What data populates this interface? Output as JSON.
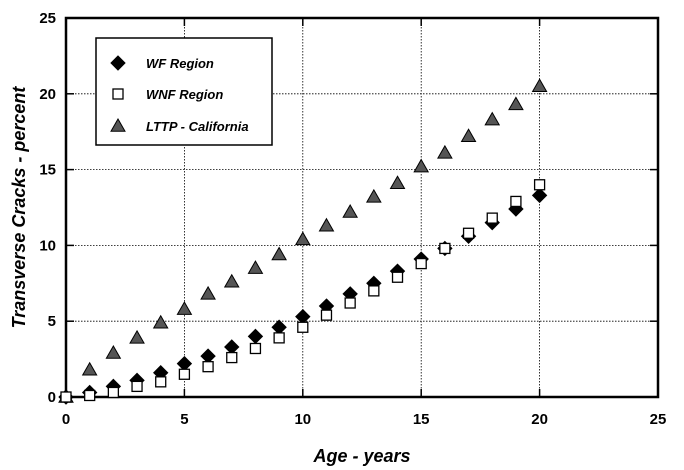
{
  "chart_data": {
    "type": "scatter",
    "title": "",
    "xlabel": "Age - years",
    "ylabel": "Transverse Cracks - percent",
    "xlim": [
      0,
      25
    ],
    "ylim": [
      0,
      25
    ],
    "xticks": [
      0,
      5,
      10,
      15,
      20,
      25
    ],
    "yticks": [
      0,
      5,
      10,
      15,
      20,
      25
    ],
    "grid": true,
    "legend_position": "top-left",
    "series": [
      {
        "name": "WF Region",
        "marker": "diamond-filled",
        "color": "#000000",
        "x": [
          0,
          1,
          2,
          3,
          4,
          5,
          6,
          7,
          8,
          9,
          10,
          11,
          12,
          13,
          14,
          15,
          16,
          17,
          18,
          19,
          20
        ],
        "y": [
          0,
          0.3,
          0.7,
          1.1,
          1.6,
          2.2,
          2.7,
          3.3,
          4.0,
          4.6,
          5.3,
          6.0,
          6.8,
          7.5,
          8.3,
          9.1,
          9.8,
          10.6,
          11.5,
          12.4,
          13.3
        ]
      },
      {
        "name": "WNF Region",
        "marker": "square-open",
        "color": "#000000",
        "x": [
          0,
          1,
          2,
          3,
          4,
          5,
          6,
          7,
          8,
          9,
          10,
          11,
          12,
          13,
          14,
          15,
          16,
          17,
          18,
          19,
          20
        ],
        "y": [
          0,
          0.1,
          0.3,
          0.7,
          1.0,
          1.5,
          2.0,
          2.6,
          3.2,
          3.9,
          4.6,
          5.4,
          6.2,
          7.0,
          7.9,
          8.8,
          9.8,
          10.8,
          11.8,
          12.9,
          14.0
        ]
      },
      {
        "name": "LTTP - California",
        "marker": "triangle-filled",
        "color": "#555555",
        "x": [
          0,
          1,
          2,
          3,
          4,
          5,
          6,
          7,
          8,
          9,
          10,
          11,
          12,
          13,
          14,
          15,
          16,
          17,
          18,
          19,
          20
        ],
        "y": [
          0,
          1.8,
          2.9,
          3.9,
          4.9,
          5.8,
          6.8,
          7.6,
          8.5,
          9.4,
          10.4,
          11.3,
          12.2,
          13.2,
          14.1,
          15.2,
          16.1,
          17.2,
          18.3,
          19.3,
          20.5
        ]
      }
    ]
  }
}
